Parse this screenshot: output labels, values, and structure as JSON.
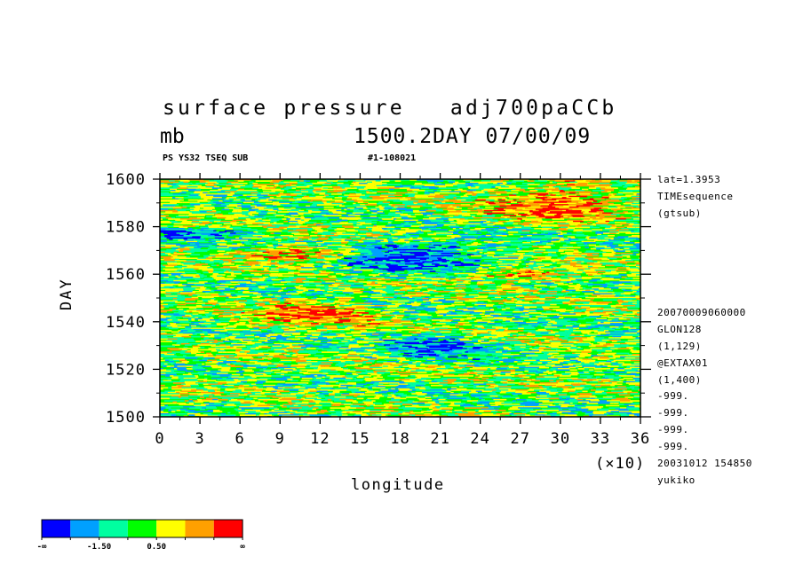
{
  "header": {
    "title_line1": "surface pressure   adj700paCCb",
    "units": "mb",
    "time_label": "1500.2DAY 07/00/09",
    "sub_left": "PS YS32 TSEQ SUB",
    "sub_right": "#1-108021"
  },
  "side_info": {
    "top": [
      "lat=1.3953",
      "TIMEsequence",
      "(gtsub)"
    ],
    "bottom": [
      "20070009060000",
      "GLON128",
      "(1,129)",
      "@EXTAX01",
      "(1,400)",
      "-999.",
      "-999.",
      "-999.",
      "-999.",
      "20031012 154850",
      "yukiko"
    ]
  },
  "axes": {
    "xlabel": "longitude",
    "ylabel": "DAY",
    "x_scale_note": "(×10)"
  },
  "legend": {
    "colors": [
      "#0000ff",
      "#00a0ff",
      "#00ffa0",
      "#00ff00",
      "#ffff00",
      "#ffa000",
      "#ff0000"
    ],
    "labels": [
      "-∞",
      "-1.50",
      "0.50",
      "∞"
    ]
  },
  "chart_data": {
    "type": "heatmap",
    "xlabel": "longitude",
    "ylabel": "DAY",
    "xlim": [
      0,
      36
    ],
    "ylim": [
      1500,
      1600
    ],
    "x_ticks": [
      "0",
      "3",
      "6",
      "9",
      "12",
      "15",
      "18",
      "21",
      "24",
      "27",
      "30",
      "33",
      "36"
    ],
    "y_ticks": [
      "1500",
      "1520",
      "1540",
      "1560",
      "1580",
      "1600"
    ],
    "x_tick_values": [
      0,
      3,
      6,
      9,
      12,
      15,
      18,
      21,
      24,
      27,
      30,
      33,
      36
    ],
    "y_tick_values": [
      1500,
      1520,
      1540,
      1560,
      1580,
      1600
    ],
    "colorbar_levels": [
      "-∞",
      "-1.50",
      "0.50",
      "∞"
    ],
    "colorbar_colors": [
      "#0000ff",
      "#00a0ff",
      "#00ffa0",
      "#00ff00",
      "#ffff00",
      "#ffa000",
      "#ff0000"
    ],
    "features": [
      {
        "value_class": "high",
        "x": [
          7,
          14
        ],
        "y": [
          1566,
          1571
        ]
      },
      {
        "value_class": "high",
        "x": [
          24,
          30
        ],
        "y": [
          1558,
          1562
        ]
      },
      {
        "value_class": "high",
        "x": [
          25,
          34
        ],
        "y": [
          1582,
          1597
        ]
      },
      {
        "value_class": "low",
        "x": [
          14,
          24
        ],
        "y": [
          1561,
          1574
        ]
      },
      {
        "value_class": "low",
        "x": [
          18,
          24
        ],
        "y": [
          1525,
          1533
        ]
      },
      {
        "value_class": "low",
        "x": [
          0,
          6
        ],
        "y": [
          1575,
          1579
        ]
      },
      {
        "value_class": "high",
        "x": [
          8,
          15
        ],
        "y": [
          1539,
          1548
        ]
      }
    ],
    "grid": false,
    "legend": "bottom-left"
  }
}
